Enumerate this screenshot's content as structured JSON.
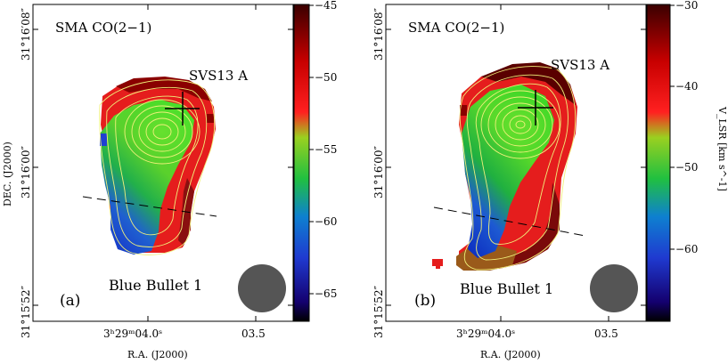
{
  "figure": {
    "panels": [
      {
        "id": "a",
        "title": "SMA CO(2−1)",
        "source_label": "SVS13 A",
        "object_label": "Blue Bullet 1",
        "panel_letter": "(a)",
        "dec_ticks": [
          "31°16′08″",
          "31°16′00″",
          "31°15′52″"
        ],
        "ra_ticks": [
          "3ʰ29ᵐ04.0ˢ",
          "03.5"
        ],
        "xlabel": "R.A. (J2000)",
        "ylabel": "DEC. (J2000)",
        "colorbar": {
          "ticks": [
            "−45",
            "−50",
            "−55",
            "−60",
            "−65"
          ],
          "range": [
            -67,
            -45
          ],
          "label": ""
        }
      },
      {
        "id": "b",
        "title": "SMA CO(2−1)",
        "source_label": "SVS13 A",
        "object_label": "Blue Bullet 1",
        "panel_letter": "(b)",
        "dec_ticks": [
          "31°16′08″",
          "31°16′00″",
          "31°15′52″"
        ],
        "ra_ticks": [
          "3ʰ29ᵐ04.0ˢ",
          "03.5"
        ],
        "xlabel": "R.A. (J2000)",
        "ylabel": "",
        "colorbar": {
          "ticks": [
            "−30",
            "−40",
            "−50",
            "−60"
          ],
          "range": [
            -68,
            -30
          ],
          "label": "V_LSR [km s^-1]"
        }
      }
    ],
    "colors": {
      "beam": "#555555",
      "contour": "#f0f07a",
      "marker": "#000000"
    },
    "colormap": [
      "#000000",
      "#1a00a0",
      "#1060d8",
      "#20c040",
      "#4ade2a",
      "#f02020",
      "#c00000",
      "#4a0000"
    ]
  }
}
